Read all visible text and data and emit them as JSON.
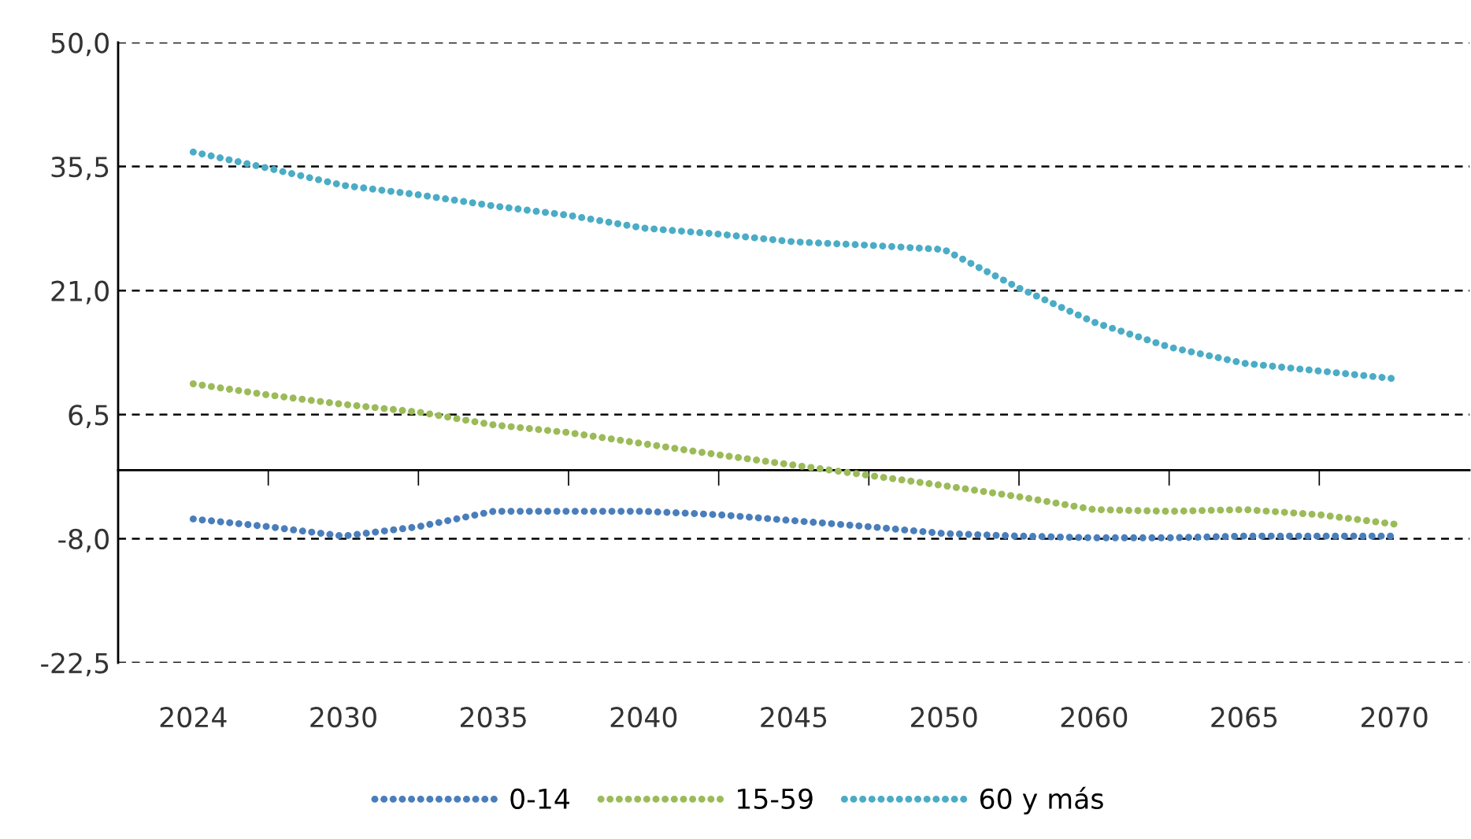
{
  "chart_data": {
    "type": "line",
    "categories": [
      "2024",
      null,
      "2030",
      null,
      "2035",
      null,
      "2040",
      null,
      "2045",
      null,
      "2050",
      null,
      "2060",
      null,
      "2065",
      null,
      "2070"
    ],
    "series": [
      {
        "name": "0-14",
        "color": "#4a7ebb",
        "values": [
          -5.7,
          -6.6,
          -7.7,
          -6.6,
          -4.8,
          -4.8,
          -4.8,
          -5.2,
          -5.9,
          -6.6,
          -7.4,
          -7.7,
          -7.9,
          -7.9,
          -7.7,
          -7.7,
          -7.7
        ]
      },
      {
        "name": "15-59",
        "color": "#9bbb59",
        "values": [
          10.1,
          8.8,
          7.7,
          6.8,
          5.3,
          4.4,
          3.1,
          1.8,
          0.6,
          -0.6,
          -1.8,
          -3.1,
          -4.6,
          -4.8,
          -4.6,
          -5.2,
          -6.3
        ]
      },
      {
        "name": "60 y más",
        "color": "#4bacc6",
        "values": [
          37.2,
          35.3,
          33.3,
          32.2,
          30.9,
          29.8,
          28.3,
          27.6,
          26.7,
          26.3,
          25.8,
          21.3,
          17.3,
          14.4,
          12.5,
          11.6,
          10.7
        ]
      }
    ],
    "ylim": [
      -22.5,
      50
    ],
    "yticks": [
      {
        "value": -22.5,
        "label": "-22,5"
      },
      {
        "value": -8,
        "label": "-8,0"
      },
      {
        "value": 6.5,
        "label": "6,5"
      },
      {
        "value": 21,
        "label": "21,0"
      },
      {
        "value": 35.5,
        "label": "35,5"
      },
      {
        "value": 50,
        "label": "50,0"
      }
    ],
    "grid": "y",
    "legend": "bottom",
    "line_style": "dotted"
  }
}
